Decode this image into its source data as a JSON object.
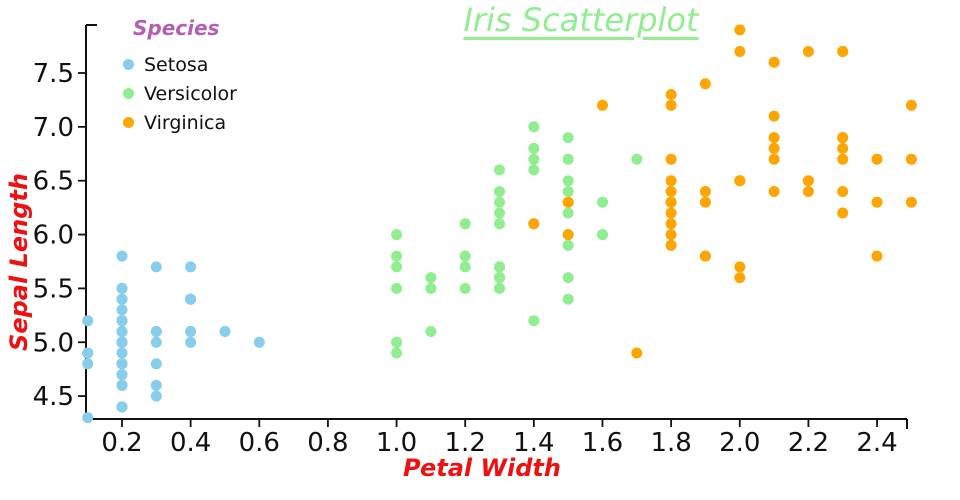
{
  "chart_data": {
    "type": "scatter",
    "title": "Iris Scatterplot",
    "xlabel": "Petal Width",
    "ylabel": "Sepal Length",
    "legend_title": "Species",
    "legend_position": "top-left",
    "grid": false,
    "x_ticks": [
      0.2,
      0.4,
      0.6,
      0.8,
      1.0,
      1.2,
      1.4,
      1.6,
      1.8,
      2.0,
      2.2,
      2.4
    ],
    "y_ticks": [
      4.5,
      5.0,
      5.5,
      6.0,
      6.5,
      7.0,
      7.5
    ],
    "xlim": [
      0.09,
      2.5
    ],
    "ylim": [
      4.28,
      7.95
    ],
    "marker_radius": 5.5,
    "colors": {
      "title": "#90EE90",
      "legend_title": "#B35EB3",
      "axis_labels": "#EE1111",
      "axis_line": "#111111",
      "tick_labels": "#111111"
    },
    "series": [
      {
        "name": "Setosa",
        "color": "#87CEEB",
        "points": [
          [
            0.2,
            5.1
          ],
          [
            0.2,
            4.9
          ],
          [
            0.2,
            4.7
          ],
          [
            0.2,
            4.6
          ],
          [
            0.2,
            5.0
          ],
          [
            0.4,
            5.4
          ],
          [
            0.3,
            4.6
          ],
          [
            0.2,
            5.0
          ],
          [
            0.2,
            4.4
          ],
          [
            0.1,
            4.9
          ],
          [
            0.2,
            5.4
          ],
          [
            0.2,
            4.8
          ],
          [
            0.1,
            4.8
          ],
          [
            0.1,
            4.3
          ],
          [
            0.2,
            5.8
          ],
          [
            0.4,
            5.7
          ],
          [
            0.4,
            5.4
          ],
          [
            0.3,
            5.1
          ],
          [
            0.3,
            5.7
          ],
          [
            0.3,
            5.1
          ],
          [
            0.2,
            5.4
          ],
          [
            0.4,
            5.1
          ],
          [
            0.2,
            4.6
          ],
          [
            0.5,
            5.1
          ],
          [
            0.2,
            4.8
          ],
          [
            0.2,
            5.0
          ],
          [
            0.4,
            5.0
          ],
          [
            0.2,
            5.2
          ],
          [
            0.2,
            5.2
          ],
          [
            0.2,
            4.7
          ],
          [
            0.2,
            4.8
          ],
          [
            0.4,
            5.4
          ],
          [
            0.1,
            5.2
          ],
          [
            0.2,
            5.5
          ],
          [
            0.2,
            4.9
          ],
          [
            0.2,
            5.0
          ],
          [
            0.2,
            5.5
          ],
          [
            0.1,
            4.9
          ],
          [
            0.2,
            4.4
          ],
          [
            0.2,
            5.1
          ],
          [
            0.3,
            5.0
          ],
          [
            0.3,
            4.5
          ],
          [
            0.2,
            4.4
          ],
          [
            0.6,
            5.0
          ],
          [
            0.4,
            5.1
          ],
          [
            0.3,
            4.8
          ],
          [
            0.2,
            5.1
          ],
          [
            0.2,
            4.6
          ],
          [
            0.2,
            5.3
          ],
          [
            0.2,
            5.0
          ]
        ]
      },
      {
        "name": "Versicolor",
        "color": "#90EE90",
        "points": [
          [
            1.4,
            7.0
          ],
          [
            1.5,
            6.4
          ],
          [
            1.5,
            6.9
          ],
          [
            1.3,
            5.5
          ],
          [
            1.5,
            6.5
          ],
          [
            1.3,
            5.7
          ],
          [
            1.6,
            6.3
          ],
          [
            1.0,
            4.9
          ],
          [
            1.3,
            6.6
          ],
          [
            1.4,
            5.2
          ],
          [
            1.0,
            5.0
          ],
          [
            1.5,
            5.9
          ],
          [
            1.0,
            6.0
          ],
          [
            1.4,
            6.1
          ],
          [
            1.3,
            5.6
          ],
          [
            1.4,
            6.7
          ],
          [
            1.5,
            5.6
          ],
          [
            1.0,
            5.8
          ],
          [
            1.5,
            6.2
          ],
          [
            1.1,
            5.6
          ],
          [
            1.8,
            5.9
          ],
          [
            1.3,
            6.1
          ],
          [
            1.5,
            6.3
          ],
          [
            1.2,
            6.1
          ],
          [
            1.3,
            6.4
          ],
          [
            1.4,
            6.6
          ],
          [
            1.4,
            6.8
          ],
          [
            1.7,
            6.7
          ],
          [
            1.5,
            6.0
          ],
          [
            1.0,
            5.7
          ],
          [
            1.1,
            5.5
          ],
          [
            1.0,
            5.5
          ],
          [
            1.2,
            5.8
          ],
          [
            1.6,
            6.0
          ],
          [
            1.5,
            5.4
          ],
          [
            1.6,
            6.0
          ],
          [
            1.5,
            6.7
          ],
          [
            1.3,
            6.3
          ],
          [
            1.3,
            5.6
          ],
          [
            1.3,
            5.5
          ],
          [
            1.2,
            5.5
          ],
          [
            1.4,
            6.1
          ],
          [
            1.2,
            5.8
          ],
          [
            1.0,
            5.0
          ],
          [
            1.3,
            5.6
          ],
          [
            1.2,
            5.7
          ],
          [
            1.3,
            5.7
          ],
          [
            1.3,
            6.2
          ],
          [
            1.1,
            5.1
          ],
          [
            1.3,
            5.7
          ]
        ]
      },
      {
        "name": "Virginica",
        "color": "#FFA500",
        "points": [
          [
            2.5,
            6.3
          ],
          [
            1.9,
            5.8
          ],
          [
            2.1,
            7.1
          ],
          [
            1.8,
            6.3
          ],
          [
            2.2,
            6.5
          ],
          [
            2.1,
            7.6
          ],
          [
            1.7,
            4.9
          ],
          [
            1.8,
            7.3
          ],
          [
            1.8,
            6.7
          ],
          [
            2.5,
            7.2
          ],
          [
            2.0,
            6.5
          ],
          [
            1.9,
            6.4
          ],
          [
            2.1,
            6.8
          ],
          [
            2.0,
            5.7
          ],
          [
            2.4,
            5.8
          ],
          [
            2.3,
            6.4
          ],
          [
            1.8,
            6.5
          ],
          [
            2.2,
            7.7
          ],
          [
            2.3,
            7.7
          ],
          [
            1.5,
            6.0
          ],
          [
            2.3,
            6.9
          ],
          [
            2.0,
            5.6
          ],
          [
            2.0,
            7.7
          ],
          [
            1.8,
            6.3
          ],
          [
            2.1,
            6.7
          ],
          [
            1.8,
            7.2
          ],
          [
            1.8,
            6.2
          ],
          [
            1.8,
            6.1
          ],
          [
            2.1,
            6.4
          ],
          [
            1.6,
            7.2
          ],
          [
            1.9,
            7.4
          ],
          [
            2.0,
            7.9
          ],
          [
            2.2,
            6.4
          ],
          [
            1.5,
            6.3
          ],
          [
            1.4,
            6.1
          ],
          [
            2.3,
            7.7
          ],
          [
            2.4,
            6.3
          ],
          [
            1.8,
            6.4
          ],
          [
            1.8,
            6.0
          ],
          [
            2.1,
            6.9
          ],
          [
            2.4,
            6.7
          ],
          [
            2.3,
            6.9
          ],
          [
            1.9,
            5.8
          ],
          [
            2.3,
            6.8
          ],
          [
            2.5,
            6.7
          ],
          [
            2.3,
            6.7
          ],
          [
            1.9,
            6.3
          ],
          [
            2.0,
            6.5
          ],
          [
            2.3,
            6.2
          ],
          [
            1.8,
            5.9
          ]
        ]
      }
    ]
  }
}
